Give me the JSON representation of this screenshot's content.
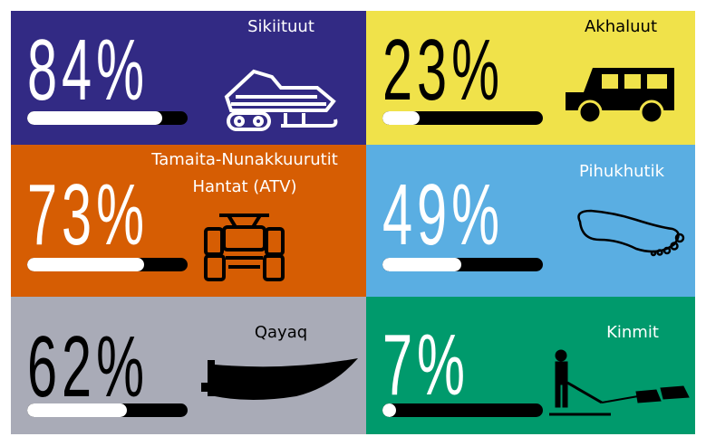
{
  "chart_data": {
    "type": "progress",
    "categories": [
      "Sikiituut",
      "Akhaluut",
      "Tamaita-Nunakkuurutit Hantat (ATV)",
      "Pihukhutik",
      "Qayaq",
      "Kinmit"
    ],
    "values": [
      84,
      23,
      73,
      49,
      62,
      7
    ],
    "value_labels": [
      "84%",
      "23%",
      "73%",
      "49%",
      "62%",
      "7%"
    ],
    "colors": [
      "#322a84",
      "#f0e24a",
      "#d65d03",
      "#5aaee2",
      "#a9abb7",
      "#009a6c"
    ],
    "text_colors": [
      "#ffffff",
      "#000000",
      "#ffffff",
      "#ffffff",
      "#000000",
      "#ffffff"
    ],
    "xlim": [
      0,
      100
    ]
  }
}
